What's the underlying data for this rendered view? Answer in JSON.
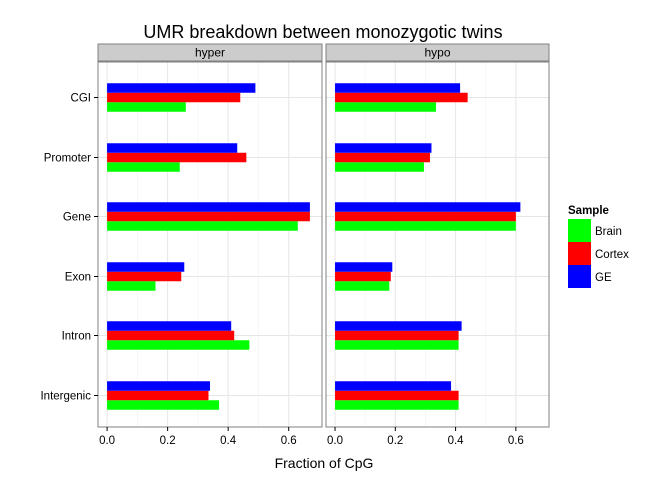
{
  "colors": {
    "Brain": "#00ff00",
    "Cortex": "#ff0000",
    "GE": "#0000ff"
  },
  "chart_data": {
    "type": "bar",
    "orientation": "horizontal",
    "title": "UMR breakdown between monozygotic twins",
    "xlabel": "Fraction of CpG",
    "ylabel": "",
    "xlim": [
      -0.03,
      0.71
    ],
    "xticks": [
      "0.0",
      "0.2",
      "0.4",
      "0.6"
    ],
    "categories": [
      "CGI",
      "Promoter",
      "Gene",
      "Exon",
      "Intron",
      "Intergenic"
    ],
    "legend": {
      "title": "Sample",
      "position": "right",
      "entries": [
        "Brain",
        "Cortex",
        "GE"
      ]
    },
    "grid": true,
    "facets": [
      {
        "name": "hyper",
        "series": [
          {
            "name": "Brain",
            "values": [
              0.26,
              0.24,
              0.63,
              0.16,
              0.47,
              0.37
            ]
          },
          {
            "name": "Cortex",
            "values": [
              0.44,
              0.46,
              0.67,
              0.245,
              0.42,
              0.335
            ]
          },
          {
            "name": "GE",
            "values": [
              0.49,
              0.43,
              0.67,
              0.255,
              0.41,
              0.34
            ]
          }
        ]
      },
      {
        "name": "hypo",
        "series": [
          {
            "name": "Brain",
            "values": [
              0.335,
              0.295,
              0.6,
              0.18,
              0.41,
              0.41
            ]
          },
          {
            "name": "Cortex",
            "values": [
              0.44,
              0.315,
              0.6,
              0.185,
              0.41,
              0.41
            ]
          },
          {
            "name": "GE",
            "values": [
              0.415,
              0.32,
              0.615,
              0.19,
              0.42,
              0.385
            ]
          }
        ]
      }
    ]
  }
}
